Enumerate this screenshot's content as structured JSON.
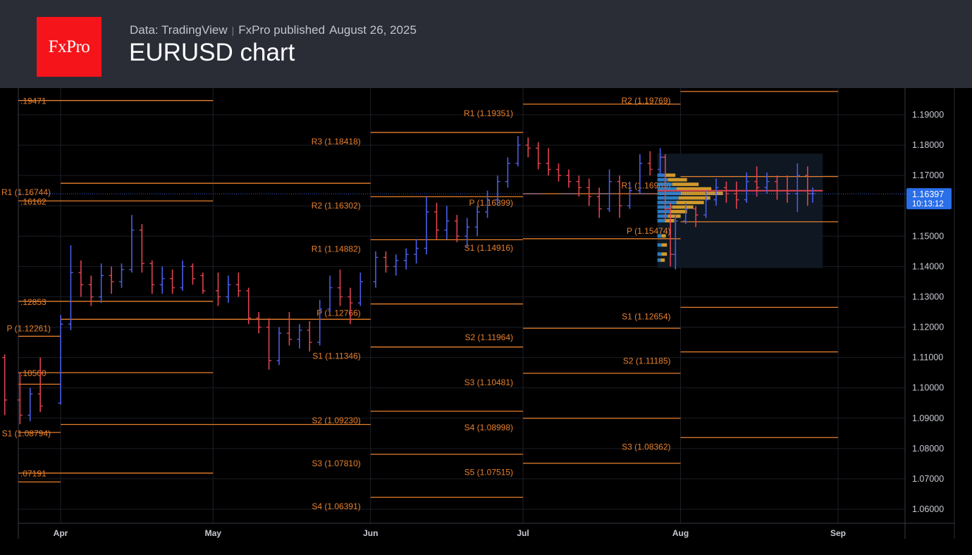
{
  "header": {
    "logo_text": "FxPro",
    "source": "Data: TradingView",
    "publisher": "FxPro published",
    "date": "August 26, 2025",
    "title": "EURUSD chart"
  },
  "colors": {
    "header_bg": "#2a2c36",
    "logo_bg": "#f5141a",
    "background": "#000000",
    "pivot_line": "#e8802c",
    "pivot_label": "#e8802c",
    "bar_up": "#4a5ee8",
    "bar_down": "#e0434f",
    "price_badge": "#2a6ee8",
    "volume_profile_up": "#e6a82e",
    "volume_profile_down": "#2f8fe0"
  },
  "chart_data": {
    "type": "ohlc",
    "symbol": "EURUSD",
    "ylim": [
      1.055,
      1.2
    ],
    "y_ticks": [
      "1.19000",
      "1.18000",
      "1.17000",
      "1.16000",
      "1.15000",
      "1.14000",
      "1.13000",
      "1.12000",
      "1.11000",
      "1.10000",
      "1.09000",
      "1.08000",
      "1.07000",
      "1.06000"
    ],
    "x_ticks": [
      {
        "label": "Apr",
        "date": "2025-04-01"
      },
      {
        "label": "May",
        "date": "2025-05-01"
      },
      {
        "label": "Jun",
        "date": "2025-06-01"
      },
      {
        "label": "Jul",
        "date": "2025-07-01"
      },
      {
        "label": "Aug",
        "date": "2025-08-01"
      },
      {
        "label": "Sep",
        "date": "2025-09-01"
      }
    ],
    "x_range": [
      "2025-03-03",
      "2025-09-08"
    ],
    "last_price": {
      "value": "1.16397",
      "countdown": "10:13:12"
    },
    "grid": true,
    "pivot_levels": [
      {
        "period_start": "2025-03-03",
        "period_end": "2025-04-01",
        "levels": [
          {
            "label": ".19471",
            "value": 1.19471
          },
          {
            "label": ".16162",
            "value": 1.16162
          },
          {
            "label": ".12853",
            "value": 1.12853
          },
          {
            "label": "",
            "value": 1.117
          },
          {
            "label": ".10500",
            "value": 1.105
          },
          {
            "label": "",
            "value": 1.1012
          },
          {
            "label": "",
            "value": 1.0853
          },
          {
            "label": ".07191",
            "value": 1.07191
          },
          {
            "label": "",
            "value": 1.069
          }
        ]
      },
      {
        "period_start": "2025-04-01",
        "period_end": "2025-05-01",
        "levels": [
          {
            "label": "",
            "value": 1.19471
          },
          {
            "label": "R1 (1.16744)",
            "value": 1.16744
          },
          {
            "label": "",
            "value": 1.16162
          },
          {
            "label": "",
            "value": 1.12853
          },
          {
            "label": "P (1.12261)",
            "value": 1.12261
          },
          {
            "label": "",
            "value": 1.105
          },
          {
            "label": "S1 (1.08794)",
            "value": 1.08794
          },
          {
            "label": "",
            "value": 1.07191
          }
        ]
      },
      {
        "period_start": "2025-05-01",
        "period_end": "2025-06-01",
        "levels": [
          {
            "label": "",
            "value": 1.16744
          },
          {
            "label": "",
            "value": 1.12261
          },
          {
            "label": "",
            "value": 1.08794
          }
        ]
      },
      {
        "period_start": "2025-06-01",
        "period_end": "2025-07-01",
        "levels": [
          {
            "label": "R3 (1.18418)",
            "value": 1.18418
          },
          {
            "label": "R2 (1.16302)",
            "value": 1.16302
          },
          {
            "label": "R1 (1.14882)",
            "value": 1.14882
          },
          {
            "label": "P (1.12766)",
            "value": 1.12766
          },
          {
            "label": "S1 (1.11346)",
            "value": 1.11346
          },
          {
            "label": "S2 (1.09230)",
            "value": 1.0923
          },
          {
            "label": "S3 (1.07810)",
            "value": 1.0781
          },
          {
            "label": "S4 (1.06391)",
            "value": 1.06391
          }
        ]
      },
      {
        "period_start": "2025-07-01",
        "period_end": "2025-08-01",
        "levels": [
          {
            "label": "R1 (1.19351)",
            "value": 1.19351
          },
          {
            "label": "P (1.16399)",
            "value": 1.16399
          },
          {
            "label": "S1 (1.14916)",
            "value": 1.14916
          },
          {
            "label": "S2 (1.11964)",
            "value": 1.11964
          },
          {
            "label": "S3 (1.10481)",
            "value": 1.10481
          },
          {
            "label": "S4 (1.08998)",
            "value": 1.08998
          },
          {
            "label": "S5 (1.07515)",
            "value": 1.07515
          }
        ]
      },
      {
        "period_start": "2025-08-01",
        "period_end": "2025-09-01",
        "levels": [
          {
            "label": "R2 (1.19769)",
            "value": 1.19769
          },
          {
            "label": "R1 (1.16965)",
            "value": 1.16965
          },
          {
            "label": "P (1.15474)",
            "value": 1.15474
          },
          {
            "label": "S1 (1.12654)",
            "value": 1.12654
          },
          {
            "label": "S2 (1.11185)",
            "value": 1.11185
          },
          {
            "label": "S3 (1.08362)",
            "value": 1.08362
          }
        ]
      }
    ],
    "volume_profile": {
      "range": [
        1.14,
        1.17
      ],
      "bins": [
        {
          "price": 1.17,
          "up": 0.1,
          "down": 0.07
        },
        {
          "price": 1.1685,
          "up": 0.18,
          "down": 0.1
        },
        {
          "price": 1.167,
          "up": 0.25,
          "down": 0.14
        },
        {
          "price": 1.1655,
          "up": 0.33,
          "down": 0.18
        },
        {
          "price": 1.164,
          "up": 0.4,
          "down": 0.22
        },
        {
          "price": 1.1625,
          "up": 0.3,
          "down": 0.2
        },
        {
          "price": 1.161,
          "up": 0.26,
          "down": 0.18
        },
        {
          "price": 1.1595,
          "up": 0.2,
          "down": 0.14
        },
        {
          "price": 1.158,
          "up": 0.16,
          "down": 0.12
        },
        {
          "price": 1.1565,
          "up": 0.12,
          "down": 0.1
        },
        {
          "price": 1.155,
          "up": 0.09,
          "down": 0.07
        },
        {
          "price": 1.15,
          "up": 0.04,
          "down": 0.04
        },
        {
          "price": 1.147,
          "up": 0.05,
          "down": 0.04
        },
        {
          "price": 1.144,
          "up": 0.05,
          "down": 0.04
        },
        {
          "price": 1.142,
          "up": 0.04,
          "down": 0.03
        }
      ]
    },
    "bars": [
      {
        "date": "2025-03-03",
        "o": 1.0815,
        "h": 1.0835,
        "l": 1.078,
        "c": 1.08
      },
      {
        "date": "2025-03-05",
        "o": 1.079,
        "h": 1.0815,
        "l": 1.075,
        "c": 1.077
      },
      {
        "date": "2025-03-07",
        "o": 1.077,
        "h": 1.082,
        "l": 1.0745,
        "c": 1.0805
      },
      {
        "date": "2025-03-10",
        "o": 1.08,
        "h": 1.0845,
        "l": 1.0775,
        "c": 1.0825
      },
      {
        "date": "2025-03-12",
        "o": 1.084,
        "h": 1.0855,
        "l": 1.08,
        "c": 1.0815
      },
      {
        "date": "2025-03-14",
        "o": 1.0815,
        "h": 1.083,
        "l": 1.078,
        "c": 1.08
      },
      {
        "date": "2025-03-17",
        "o": 1.08,
        "h": 1.0925,
        "l": 1.0785,
        "c": 1.0905
      },
      {
        "date": "2025-03-19",
        "o": 1.09,
        "h": 1.115,
        "l": 1.0805,
        "c": 1.112
      },
      {
        "date": "2025-03-21",
        "o": 1.11,
        "h": 1.111,
        "l": 1.091,
        "c": 1.096
      },
      {
        "date": "2025-03-24",
        "o": 1.096,
        "h": 1.105,
        "l": 1.088,
        "c": 1.091
      },
      {
        "date": "2025-03-26",
        "o": 1.091,
        "h": 1.1,
        "l": 1.089,
        "c": 1.098
      },
      {
        "date": "2025-03-28",
        "o": 1.098,
        "h": 1.11,
        "l": 1.092,
        "c": 1.094
      },
      {
        "date": "2025-04-01",
        "o": 1.095,
        "h": 1.124,
        "l": 1.0945,
        "c": 1.121
      },
      {
        "date": "2025-04-03",
        "o": 1.121,
        "h": 1.147,
        "l": 1.119,
        "c": 1.138
      },
      {
        "date": "2025-04-05",
        "o": 1.138,
        "h": 1.142,
        "l": 1.13,
        "c": 1.134
      },
      {
        "date": "2025-04-07",
        "o": 1.134,
        "h": 1.137,
        "l": 1.127,
        "c": 1.13
      },
      {
        "date": "2025-04-09",
        "o": 1.13,
        "h": 1.141,
        "l": 1.128,
        "c": 1.137
      },
      {
        "date": "2025-04-11",
        "o": 1.137,
        "h": 1.14,
        "l": 1.131,
        "c": 1.135
      },
      {
        "date": "2025-04-13",
        "o": 1.135,
        "h": 1.141,
        "l": 1.133,
        "c": 1.139
      },
      {
        "date": "2025-04-15",
        "o": 1.139,
        "h": 1.157,
        "l": 1.138,
        "c": 1.152
      },
      {
        "date": "2025-04-17",
        "o": 1.152,
        "h": 1.154,
        "l": 1.138,
        "c": 1.141
      },
      {
        "date": "2025-04-19",
        "o": 1.141,
        "h": 1.142,
        "l": 1.131,
        "c": 1.134
      },
      {
        "date": "2025-04-21",
        "o": 1.134,
        "h": 1.14,
        "l": 1.131,
        "c": 1.136
      },
      {
        "date": "2025-04-23",
        "o": 1.136,
        "h": 1.139,
        "l": 1.131,
        "c": 1.133
      },
      {
        "date": "2025-04-25",
        "o": 1.133,
        "h": 1.142,
        "l": 1.132,
        "c": 1.14
      },
      {
        "date": "2025-04-27",
        "o": 1.14,
        "h": 1.141,
        "l": 1.134,
        "c": 1.136
      },
      {
        "date": "2025-04-29",
        "o": 1.137,
        "h": 1.138,
        "l": 1.131,
        "c": 1.132
      },
      {
        "date": "2025-05-02",
        "o": 1.132,
        "h": 1.138,
        "l": 1.127,
        "c": 1.13
      },
      {
        "date": "2025-05-04",
        "o": 1.13,
        "h": 1.137,
        "l": 1.128,
        "c": 1.134
      },
      {
        "date": "2025-05-06",
        "o": 1.134,
        "h": 1.138,
        "l": 1.13,
        "c": 1.132
      },
      {
        "date": "2025-05-08",
        "o": 1.132,
        "h": 1.133,
        "l": 1.121,
        "c": 1.123
      },
      {
        "date": "2025-05-10",
        "o": 1.123,
        "h": 1.125,
        "l": 1.118,
        "c": 1.12
      },
      {
        "date": "2025-05-12",
        "o": 1.12,
        "h": 1.123,
        "l": 1.106,
        "c": 1.109
      },
      {
        "date": "2025-05-14",
        "o": 1.109,
        "h": 1.12,
        "l": 1.1075,
        "c": 1.118
      },
      {
        "date": "2025-05-16",
        "o": 1.118,
        "h": 1.125,
        "l": 1.114,
        "c": 1.116
      },
      {
        "date": "2025-05-18",
        "o": 1.116,
        "h": 1.121,
        "l": 1.113,
        "c": 1.119
      },
      {
        "date": "2025-05-20",
        "o": 1.119,
        "h": 1.122,
        "l": 1.112,
        "c": 1.115
      },
      {
        "date": "2025-05-22",
        "o": 1.115,
        "h": 1.129,
        "l": 1.114,
        "c": 1.126
      },
      {
        "date": "2025-05-24",
        "o": 1.126,
        "h": 1.137,
        "l": 1.125,
        "c": 1.133
      },
      {
        "date": "2025-05-26",
        "o": 1.133,
        "h": 1.139,
        "l": 1.127,
        "c": 1.13
      },
      {
        "date": "2025-05-28",
        "o": 1.13,
        "h": 1.133,
        "l": 1.121,
        "c": 1.128
      },
      {
        "date": "2025-05-30",
        "o": 1.128,
        "h": 1.138,
        "l": 1.127,
        "c": 1.135
      },
      {
        "date": "2025-06-02",
        "o": 1.135,
        "h": 1.145,
        "l": 1.133,
        "c": 1.143
      },
      {
        "date": "2025-06-04",
        "o": 1.143,
        "h": 1.145,
        "l": 1.138,
        "c": 1.14
      },
      {
        "date": "2025-06-06",
        "o": 1.14,
        "h": 1.144,
        "l": 1.137,
        "c": 1.142
      },
      {
        "date": "2025-06-08",
        "o": 1.142,
        "h": 1.146,
        "l": 1.139,
        "c": 1.144
      },
      {
        "date": "2025-06-10",
        "o": 1.144,
        "h": 1.149,
        "l": 1.141,
        "c": 1.146
      },
      {
        "date": "2025-06-12",
        "o": 1.146,
        "h": 1.163,
        "l": 1.144,
        "c": 1.158
      },
      {
        "date": "2025-06-14",
        "o": 1.158,
        "h": 1.161,
        "l": 1.149,
        "c": 1.152
      },
      {
        "date": "2025-06-16",
        "o": 1.152,
        "h": 1.16,
        "l": 1.149,
        "c": 1.155
      },
      {
        "date": "2025-06-18",
        "o": 1.155,
        "h": 1.157,
        "l": 1.148,
        "c": 1.15
      },
      {
        "date": "2025-06-20",
        "o": 1.15,
        "h": 1.156,
        "l": 1.146,
        "c": 1.153
      },
      {
        "date": "2025-06-22",
        "o": 1.153,
        "h": 1.16,
        "l": 1.15,
        "c": 1.158
      },
      {
        "date": "2025-06-24",
        "o": 1.158,
        "h": 1.165,
        "l": 1.156,
        "c": 1.162
      },
      {
        "date": "2025-06-26",
        "o": 1.162,
        "h": 1.17,
        "l": 1.16,
        "c": 1.168
      },
      {
        "date": "2025-06-28",
        "o": 1.168,
        "h": 1.176,
        "l": 1.166,
        "c": 1.174
      },
      {
        "date": "2025-06-30",
        "o": 1.174,
        "h": 1.183,
        "l": 1.173,
        "c": 1.18
      },
      {
        "date": "2025-07-02",
        "o": 1.18,
        "h": 1.1825,
        "l": 1.176,
        "c": 1.179
      },
      {
        "date": "2025-07-04",
        "o": 1.179,
        "h": 1.181,
        "l": 1.172,
        "c": 1.174
      },
      {
        "date": "2025-07-06",
        "o": 1.174,
        "h": 1.179,
        "l": 1.17,
        "c": 1.172
      },
      {
        "date": "2025-07-08",
        "o": 1.172,
        "h": 1.174,
        "l": 1.168,
        "c": 1.17
      },
      {
        "date": "2025-07-10",
        "o": 1.17,
        "h": 1.172,
        "l": 1.166,
        "c": 1.168
      },
      {
        "date": "2025-07-12",
        "o": 1.168,
        "h": 1.17,
        "l": 1.163,
        "c": 1.166
      },
      {
        "date": "2025-07-14",
        "o": 1.166,
        "h": 1.169,
        "l": 1.16,
        "c": 1.163
      },
      {
        "date": "2025-07-16",
        "o": 1.163,
        "h": 1.166,
        "l": 1.156,
        "c": 1.159
      },
      {
        "date": "2025-07-18",
        "o": 1.159,
        "h": 1.172,
        "l": 1.158,
        "c": 1.168
      },
      {
        "date": "2025-07-20",
        "o": 1.168,
        "h": 1.17,
        "l": 1.156,
        "c": 1.16
      },
      {
        "date": "2025-07-22",
        "o": 1.16,
        "h": 1.168,
        "l": 1.159,
        "c": 1.165
      },
      {
        "date": "2025-07-24",
        "o": 1.165,
        "h": 1.177,
        "l": 1.164,
        "c": 1.174
      },
      {
        "date": "2025-07-26",
        "o": 1.174,
        "h": 1.178,
        "l": 1.17,
        "c": 1.172
      },
      {
        "date": "2025-07-28",
        "o": 1.172,
        "h": 1.179,
        "l": 1.17,
        "c": 1.176
      },
      {
        "date": "2025-07-29",
        "o": 1.176,
        "h": 1.177,
        "l": 1.155,
        "c": 1.159
      },
      {
        "date": "2025-07-30",
        "o": 1.159,
        "h": 1.161,
        "l": 1.14,
        "c": 1.144
      },
      {
        "date": "2025-07-31",
        "o": 1.144,
        "h": 1.157,
        "l": 1.139,
        "c": 1.155
      },
      {
        "date": "2025-08-02",
        "o": 1.155,
        "h": 1.161,
        "l": 1.154,
        "c": 1.159
      },
      {
        "date": "2025-08-04",
        "o": 1.159,
        "h": 1.16,
        "l": 1.153,
        "c": 1.157
      },
      {
        "date": "2025-08-06",
        "o": 1.157,
        "h": 1.165,
        "l": 1.156,
        "c": 1.162
      },
      {
        "date": "2025-08-08",
        "o": 1.162,
        "h": 1.169,
        "l": 1.16,
        "c": 1.166
      },
      {
        "date": "2025-08-10",
        "o": 1.166,
        "h": 1.168,
        "l": 1.161,
        "c": 1.164
      },
      {
        "date": "2025-08-12",
        "o": 1.164,
        "h": 1.168,
        "l": 1.159,
        "c": 1.162
      },
      {
        "date": "2025-08-14",
        "o": 1.162,
        "h": 1.171,
        "l": 1.161,
        "c": 1.168
      },
      {
        "date": "2025-08-16",
        "o": 1.168,
        "h": 1.173,
        "l": 1.163,
        "c": 1.166
      },
      {
        "date": "2025-08-18",
        "o": 1.166,
        "h": 1.171,
        "l": 1.164,
        "c": 1.168
      },
      {
        "date": "2025-08-20",
        "o": 1.168,
        "h": 1.17,
        "l": 1.162,
        "c": 1.165
      },
      {
        "date": "2025-08-22",
        "o": 1.165,
        "h": 1.17,
        "l": 1.161,
        "c": 1.164
      },
      {
        "date": "2025-08-24",
        "o": 1.164,
        "h": 1.174,
        "l": 1.158,
        "c": 1.17
      },
      {
        "date": "2025-08-26",
        "o": 1.17,
        "h": 1.173,
        "l": 1.16,
        "c": 1.164
      },
      {
        "date": "2025-08-27",
        "o": 1.164,
        "h": 1.166,
        "l": 1.161,
        "c": 1.164
      }
    ]
  }
}
